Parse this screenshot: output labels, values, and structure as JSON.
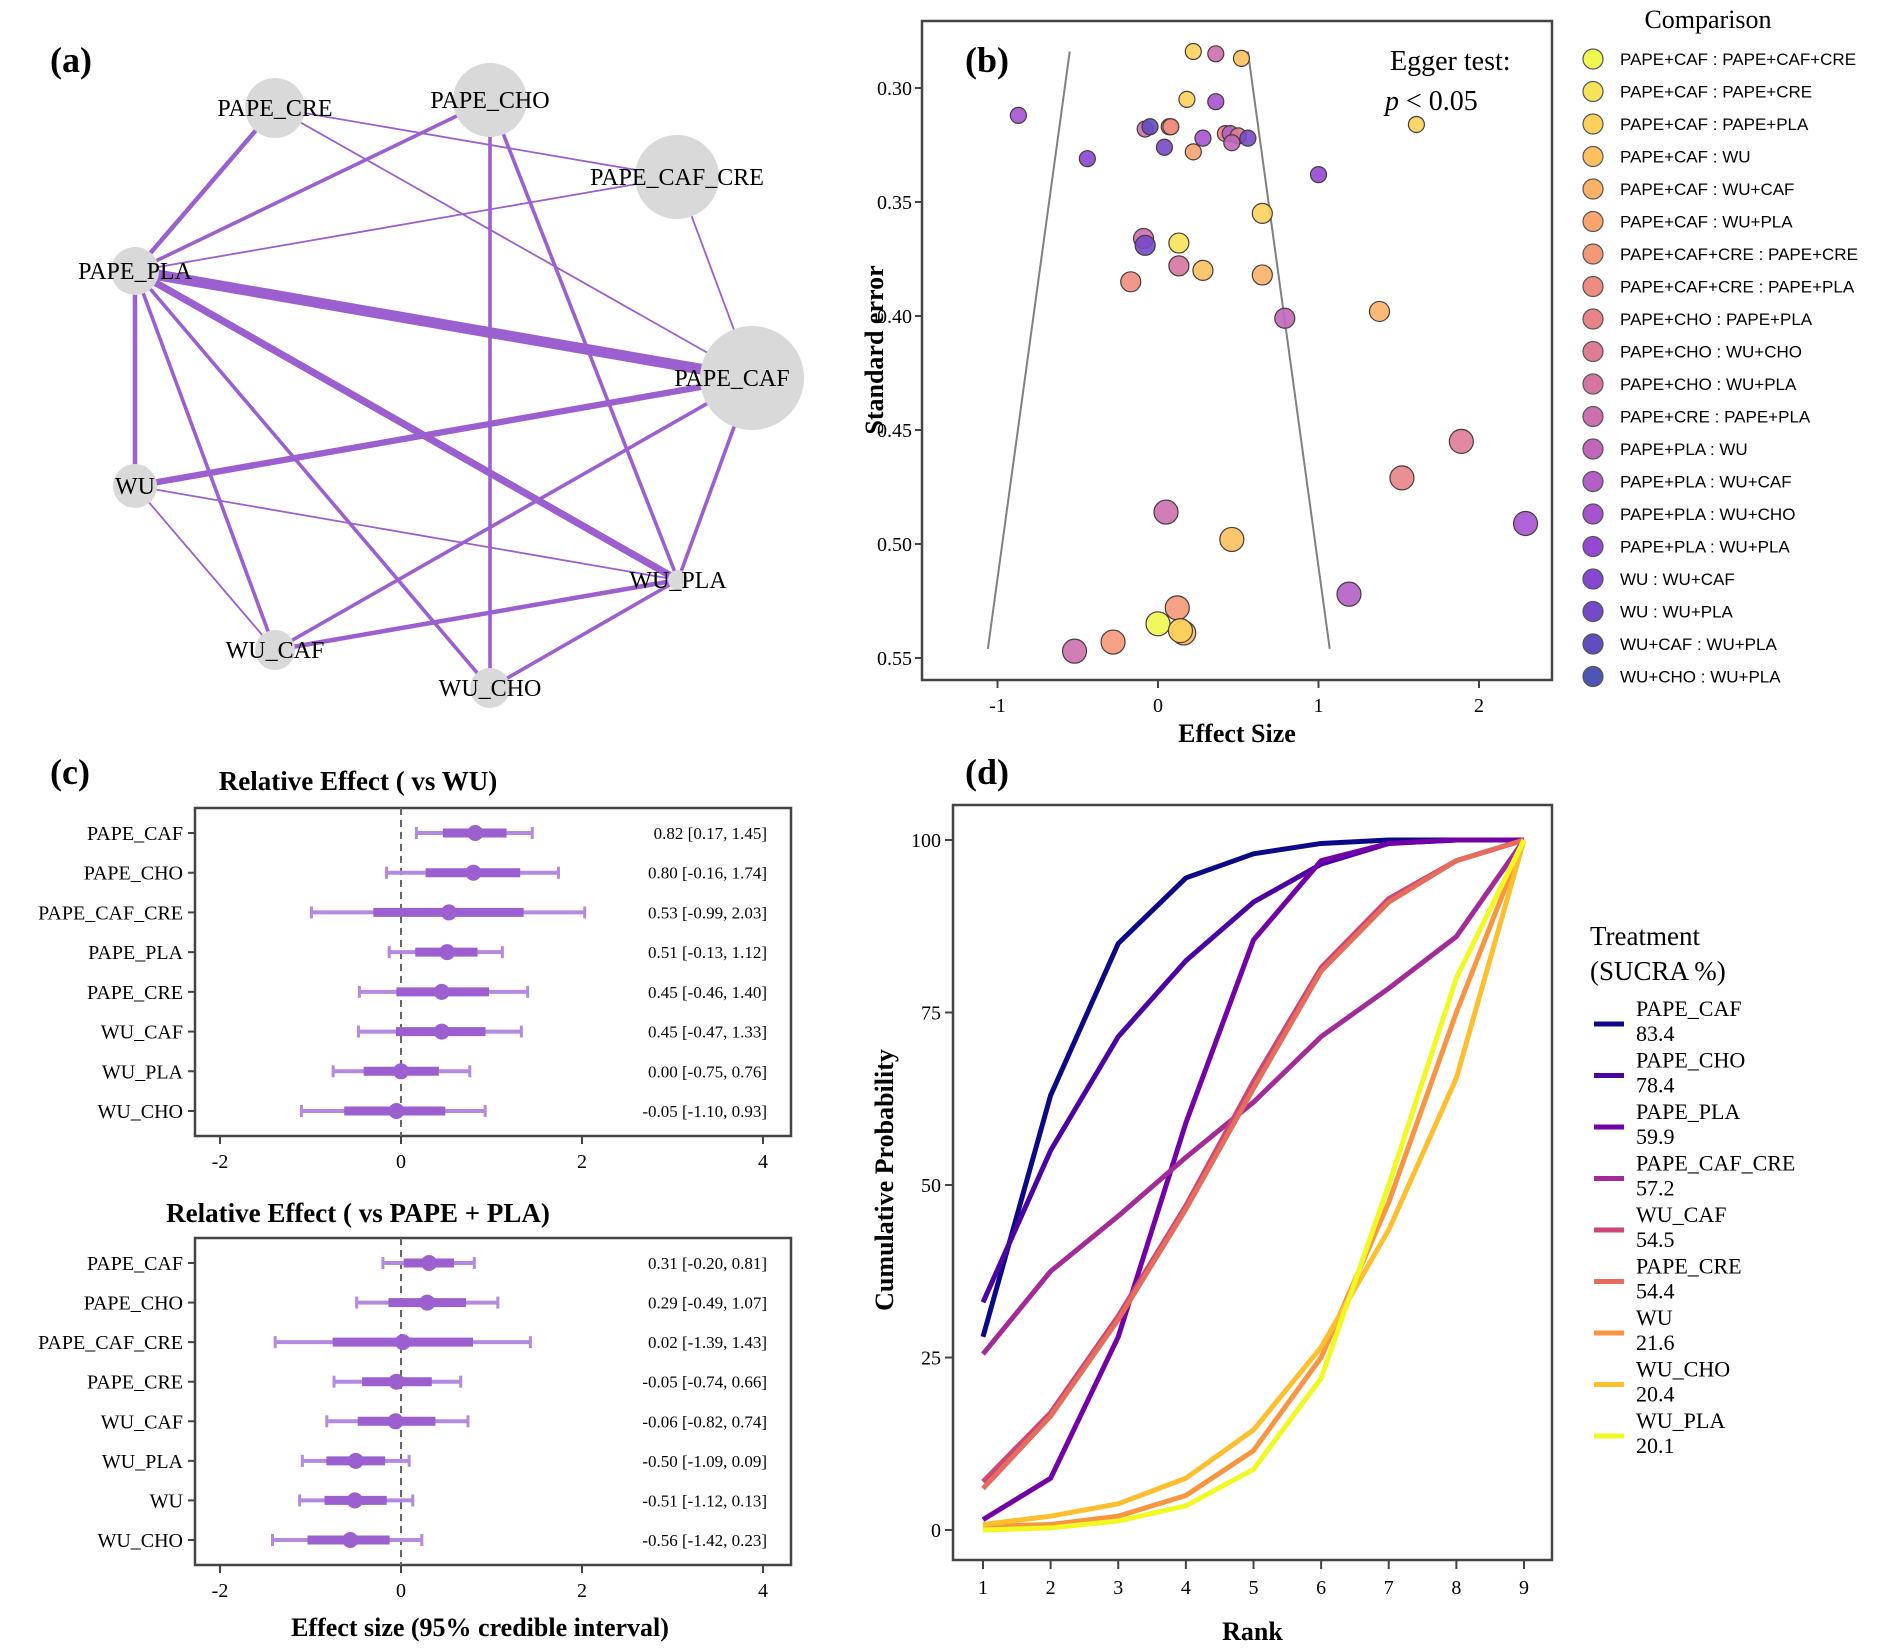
{
  "panels": {
    "a": "(a)",
    "b": "(b)",
    "c": "(c)",
    "d": "(d)"
  },
  "chart_data": [
    {
      "id": "network",
      "type": "network",
      "edge_color": "#9b5fcf",
      "node_color": "#d9d9d9",
      "nodes": [
        {
          "name": "PAPE_CHO",
          "size": 3
        },
        {
          "name": "PAPE_CRE",
          "size": 2
        },
        {
          "name": "PAPE_CAF_CRE",
          "size": 3
        },
        {
          "name": "PAPE_PLA",
          "size": 2
        },
        {
          "name": "PAPE_CAF",
          "size": 4
        },
        {
          "name": "WU",
          "size": 1.5
        },
        {
          "name": "WU_PLA",
          "size": 0.6
        },
        {
          "name": "WU_CAF",
          "size": 1.4
        },
        {
          "name": "WU_CHO",
          "size": 1.4
        }
      ],
      "edges": [
        {
          "from": "PAPE_PLA",
          "to": "PAPE_CAF",
          "weight": 6
        },
        {
          "from": "PAPE_PLA",
          "to": "WU_PLA",
          "weight": 4
        },
        {
          "from": "WU",
          "to": "PAPE_CAF",
          "weight": 3.5
        },
        {
          "from": "PAPE_PLA",
          "to": "PAPE_CRE",
          "weight": 2.5
        },
        {
          "from": "PAPE_PLA",
          "to": "WU",
          "weight": 2.5
        },
        {
          "from": "PAPE_PLA",
          "to": "PAPE_CHO",
          "weight": 2
        },
        {
          "from": "PAPE_PLA",
          "to": "PAPE_CAF_CRE",
          "weight": 1
        },
        {
          "from": "PAPE_PLA",
          "to": "WU_CAF",
          "weight": 2
        },
        {
          "from": "PAPE_PLA",
          "to": "WU_CHO",
          "weight": 2
        },
        {
          "from": "PAPE_CHO",
          "to": "WU_CHO",
          "weight": 2
        },
        {
          "from": "PAPE_CHO",
          "to": "WU_PLA",
          "weight": 2
        },
        {
          "from": "PAPE_CRE",
          "to": "PAPE_CAF_CRE",
          "weight": 1
        },
        {
          "from": "PAPE_CRE",
          "to": "PAPE_CAF",
          "weight": 1
        },
        {
          "from": "PAPE_CAF_CRE",
          "to": "PAPE_CAF",
          "weight": 1
        },
        {
          "from": "PAPE_CAF",
          "to": "WU_PLA",
          "weight": 2
        },
        {
          "from": "PAPE_CAF",
          "to": "WU_CAF",
          "weight": 2
        },
        {
          "from": "WU",
          "to": "WU_PLA",
          "weight": 1
        },
        {
          "from": "WU",
          "to": "WU_CAF",
          "weight": 1
        },
        {
          "from": "WU_CAF",
          "to": "WU_PLA",
          "weight": 2.5
        },
        {
          "from": "WU_CHO",
          "to": "WU_PLA",
          "weight": 2
        }
      ]
    },
    {
      "id": "funnel",
      "type": "scatter",
      "xlabel": "Effect Size",
      "ylabel": "Standard error",
      "xlim": [
        -1.25,
        2.45
      ],
      "ylim": [
        0.272,
        0.557
      ],
      "y_reversed": true,
      "xticks": [
        -1,
        0,
        1,
        2
      ],
      "yticks": [
        0.3,
        0.35,
        0.4,
        0.45,
        0.5,
        0.55
      ],
      "ytick_labels": [
        "0.30",
        "0.35",
        "0.40",
        "0.45",
        "0.50",
        "0.55"
      ],
      "annotation": {
        "line1": "Egger test:",
        "p": "p",
        "line2": " < 0.05"
      },
      "funnel_lines": [
        {
          "x": [
            -0.55,
            -1.06
          ],
          "y": [
            0.284,
            0.546
          ]
        },
        {
          "x": [
            0.56,
            1.07
          ],
          "y": [
            0.284,
            0.546
          ]
        }
      ],
      "legend_title": "Comparison",
      "legend": [
        {
          "label": "PAPE+CAF : PAPE+CAF+CRE",
          "color": "#f0f74e"
        },
        {
          "label": "PAPE+CAF : PAPE+CRE",
          "color": "#f7e35a"
        },
        {
          "label": "PAPE+CAF : PAPE+PLA",
          "color": "#fbd15b"
        },
        {
          "label": "PAPE+CAF : WU",
          "color": "#fcc05f"
        },
        {
          "label": "PAPE+CAF : WU+CAF",
          "color": "#fbb168"
        },
        {
          "label": "PAPE+CAF : WU+PLA",
          "color": "#f9a46e"
        },
        {
          "label": "PAPE+CAF+CRE : PAPE+CRE",
          "color": "#f59878"
        },
        {
          "label": "PAPE+CAF+CRE : PAPE+PLA",
          "color": "#ef8c80"
        },
        {
          "label": "PAPE+CHO : PAPE+PLA",
          "color": "#e88388"
        },
        {
          "label": "PAPE+CHO : WU+CHO",
          "color": "#de7c94"
        },
        {
          "label": "PAPE+CHO : WU+PLA",
          "color": "#d676a0"
        },
        {
          "label": "PAPE+CRE : PAPE+PLA",
          "color": "#cc6fae"
        },
        {
          "label": "PAPE+PLA : WU",
          "color": "#c167ba"
        },
        {
          "label": "PAPE+PLA : WU+CAF",
          "color": "#b45fc6"
        },
        {
          "label": "PAPE+PLA : WU+CHO",
          "color": "#a553cf"
        },
        {
          "label": "PAPE+PLA : WU+PLA",
          "color": "#9548d4"
        },
        {
          "label": "WU : WU+CAF",
          "color": "#8547d0"
        },
        {
          "label": "WU : WU+PLA",
          "color": "#7449c8"
        },
        {
          "label": "WU+CAF : WU+PLA",
          "color": "#614cbf"
        },
        {
          "label": "WU+CHO : WU+PLA",
          "color": "#4f55b4"
        }
      ],
      "points": [
        {
          "x": 0.22,
          "se": 0.284,
          "c": 2
        },
        {
          "x": 0.36,
          "se": 0.285,
          "c": 11
        },
        {
          "x": 0.52,
          "se": 0.287,
          "c": 3
        },
        {
          "x": -0.87,
          "se": 0.312,
          "c": 14
        },
        {
          "x": 0.18,
          "se": 0.305,
          "c": 2
        },
        {
          "x": 0.36,
          "se": 0.306,
          "c": 14
        },
        {
          "x": 1.61,
          "se": 0.316,
          "c": 2
        },
        {
          "x": -0.08,
          "se": 0.318,
          "c": 11
        },
        {
          "x": -0.05,
          "se": 0.317,
          "c": 18
        },
        {
          "x": 0.07,
          "se": 0.317,
          "c": 6
        },
        {
          "x": 0.08,
          "se": 0.317,
          "c": 7
        },
        {
          "x": 0.42,
          "se": 0.32,
          "c": 8
        },
        {
          "x": 0.45,
          "se": 0.32,
          "c": 13
        },
        {
          "x": 0.5,
          "se": 0.321,
          "c": 9
        },
        {
          "x": 0.56,
          "se": 0.322,
          "c": 17
        },
        {
          "x": 0.28,
          "se": 0.322,
          "c": 14
        },
        {
          "x": 0.46,
          "se": 0.324,
          "c": 12
        },
        {
          "x": 0.04,
          "se": 0.326,
          "c": 17
        },
        {
          "x": 0.22,
          "se": 0.328,
          "c": 5
        },
        {
          "x": -0.44,
          "se": 0.331,
          "c": 16
        },
        {
          "x": 1.0,
          "se": 0.338,
          "c": 15
        },
        {
          "x": 0.65,
          "se": 0.355,
          "c": 2
        },
        {
          "x": -0.09,
          "se": 0.366,
          "c": 11
        },
        {
          "x": -0.08,
          "se": 0.369,
          "c": 17
        },
        {
          "x": 0.13,
          "se": 0.368,
          "c": 1
        },
        {
          "x": 0.13,
          "se": 0.378,
          "c": 10
        },
        {
          "x": 0.28,
          "se": 0.38,
          "c": 3
        },
        {
          "x": -0.17,
          "se": 0.385,
          "c": 7
        },
        {
          "x": 0.65,
          "se": 0.382,
          "c": 4
        },
        {
          "x": 0.79,
          "se": 0.401,
          "c": 12
        },
        {
          "x": 1.38,
          "se": 0.398,
          "c": 4
        },
        {
          "x": 1.89,
          "se": 0.455,
          "c": 9
        },
        {
          "x": 1.52,
          "se": 0.471,
          "c": 8
        },
        {
          "x": 2.29,
          "se": 0.491,
          "c": 14
        },
        {
          "x": 0.05,
          "se": 0.486,
          "c": 11
        },
        {
          "x": 0.46,
          "se": 0.498,
          "c": 3
        },
        {
          "x": 1.19,
          "se": 0.522,
          "c": 13
        },
        {
          "x": 0.12,
          "se": 0.528,
          "c": 6
        },
        {
          "x": 0.0,
          "se": 0.535,
          "c": 0
        },
        {
          "x": 0.16,
          "se": 0.539,
          "c": 3
        },
        {
          "x": 0.14,
          "se": 0.538,
          "c": 2
        },
        {
          "x": -0.28,
          "se": 0.543,
          "c": 6
        },
        {
          "x": -0.52,
          "se": 0.547,
          "c": 11
        }
      ]
    },
    {
      "id": "forest_vs_wu",
      "type": "forest",
      "title": "Relative Effect ( vs WU)",
      "xlim": [
        -2.25,
        4.35
      ],
      "xticks": [
        -2,
        0,
        2,
        4
      ],
      "color": "#9b5fcf",
      "rows": [
        {
          "label": "PAPE_CAF",
          "est": 0.82,
          "lo": 0.17,
          "hi": 1.45,
          "text": "0.82 [0.17, 1.45]"
        },
        {
          "label": "PAPE_CHO",
          "est": 0.8,
          "lo": -0.16,
          "hi": 1.74,
          "text": "0.80 [-0.16, 1.74]"
        },
        {
          "label": "PAPE_CAF_CRE",
          "est": 0.53,
          "lo": -0.99,
          "hi": 2.03,
          "text": "0.53 [-0.99, 2.03]"
        },
        {
          "label": "PAPE_PLA",
          "est": 0.51,
          "lo": -0.13,
          "hi": 1.12,
          "text": "0.51 [-0.13, 1.12]"
        },
        {
          "label": "PAPE_CRE",
          "est": 0.45,
          "lo": -0.46,
          "hi": 1.4,
          "text": "0.45 [-0.46, 1.40]"
        },
        {
          "label": "WU_CAF",
          "est": 0.45,
          "lo": -0.47,
          "hi": 1.33,
          "text": "0.45 [-0.47, 1.33]"
        },
        {
          "label": "WU_PLA",
          "est": 0.0,
          "lo": -0.75,
          "hi": 0.76,
          "text": "0.00 [-0.75, 0.76]"
        },
        {
          "label": "WU_CHO",
          "est": -0.05,
          "lo": -1.1,
          "hi": 0.93,
          "text": "-0.05 [-1.10, 0.93]"
        }
      ]
    },
    {
      "id": "forest_vs_pape_pla",
      "type": "forest",
      "title": "Relative Effect ( vs PAPE + PLA)",
      "xlabel": "Effect size (95% credible interval)",
      "xlim": [
        -2.25,
        4.35
      ],
      "xticks": [
        -2,
        0,
        2,
        4
      ],
      "color": "#9b5fcf",
      "rows": [
        {
          "label": "PAPE_CAF",
          "est": 0.31,
          "lo": -0.2,
          "hi": 0.81,
          "text": "0.31 [-0.20, 0.81]"
        },
        {
          "label": "PAPE_CHO",
          "est": 0.29,
          "lo": -0.49,
          "hi": 1.07,
          "text": "0.29 [-0.49, 1.07]"
        },
        {
          "label": "PAPE_CAF_CRE",
          "est": 0.02,
          "lo": -1.39,
          "hi": 1.43,
          "text": "0.02 [-1.39, 1.43]"
        },
        {
          "label": "PAPE_CRE",
          "est": -0.05,
          "lo": -0.74,
          "hi": 0.66,
          "text": "-0.05 [-0.74, 0.66]"
        },
        {
          "label": "WU_CAF",
          "est": -0.06,
          "lo": -0.82,
          "hi": 0.74,
          "text": "-0.06 [-0.82, 0.74]"
        },
        {
          "label": "WU_PLA",
          "est": -0.5,
          "lo": -1.09,
          "hi": 0.09,
          "text": "-0.50 [-1.09, 0.09]"
        },
        {
          "label": "WU",
          "est": -0.51,
          "lo": -1.12,
          "hi": 0.13,
          "text": "-0.51 [-1.12, 0.13]"
        },
        {
          "label": "WU_CHO",
          "est": -0.56,
          "lo": -1.42,
          "hi": 0.23,
          "text": "-0.56 [-1.42, 0.23]"
        }
      ]
    },
    {
      "id": "rankogram",
      "type": "line",
      "xlabel": "Rank",
      "ylabel": "Cumulative Probability",
      "x": [
        1,
        2,
        3,
        4,
        5,
        6,
        7,
        8,
        9
      ],
      "xlim": [
        0.65,
        9.45
      ],
      "ylim": [
        -6,
        104
      ],
      "yticks": [
        0,
        25,
        50,
        75,
        100
      ],
      "legend_title": [
        "Treatment",
        "(SUCRA %)"
      ],
      "series": [
        {
          "name": "PAPE_CAF",
          "sucra": "83.4",
          "color": "#0d0887",
          "values": [
            28,
            63,
            85,
            94.5,
            98,
            99.5,
            100,
            100,
            100
          ]
        },
        {
          "name": "PAPE_CHO",
          "sucra": "78.4",
          "color": "#4b03a1",
          "values": [
            33,
            55,
            71.5,
            82.5,
            91,
            96.5,
            99.5,
            100,
            100
          ]
        },
        {
          "name": "PAPE_PLA",
          "sucra": "59.9",
          "color": "#7201a8",
          "values": [
            1.5,
            7.5,
            28,
            59,
            85.5,
            97,
            99.5,
            100,
            100
          ]
        },
        {
          "name": "PAPE_CAF_CRE",
          "sucra": "57.2",
          "color": "#a22b97",
          "values": [
            25.5,
            37.5,
            45.5,
            54,
            62,
            71.5,
            78.5,
            86,
            100
          ]
        },
        {
          "name": "WU_CAF",
          "sucra": "54.5",
          "color": "#cc4778",
          "values": [
            7,
            17,
            31,
            47,
            65,
            81.5,
            91.5,
            97,
            100
          ]
        },
        {
          "name": "PAPE_CRE",
          "sucra": "54.4",
          "color": "#e66c5c",
          "values": [
            6,
            16.5,
            30.5,
            46.5,
            64,
            81,
            91,
            97,
            100
          ]
        },
        {
          "name": "WU",
          "sucra": "21.6",
          "color": "#f89540",
          "values": [
            0.5,
            0.8,
            2,
            5,
            11.5,
            25,
            47.5,
            75,
            100
          ]
        },
        {
          "name": "WU_CHO",
          "sucra": "20.4",
          "color": "#fdbf2e",
          "values": [
            0.8,
            2,
            3.8,
            7.5,
            14.5,
            26.5,
            43.5,
            65.5,
            100
          ]
        },
        {
          "name": "WU_PLA",
          "sucra": "20.1",
          "color": "#f0f921",
          "values": [
            0,
            0.3,
            1.3,
            3.5,
            8.8,
            22,
            50,
            80,
            100
          ]
        }
      ]
    }
  ]
}
